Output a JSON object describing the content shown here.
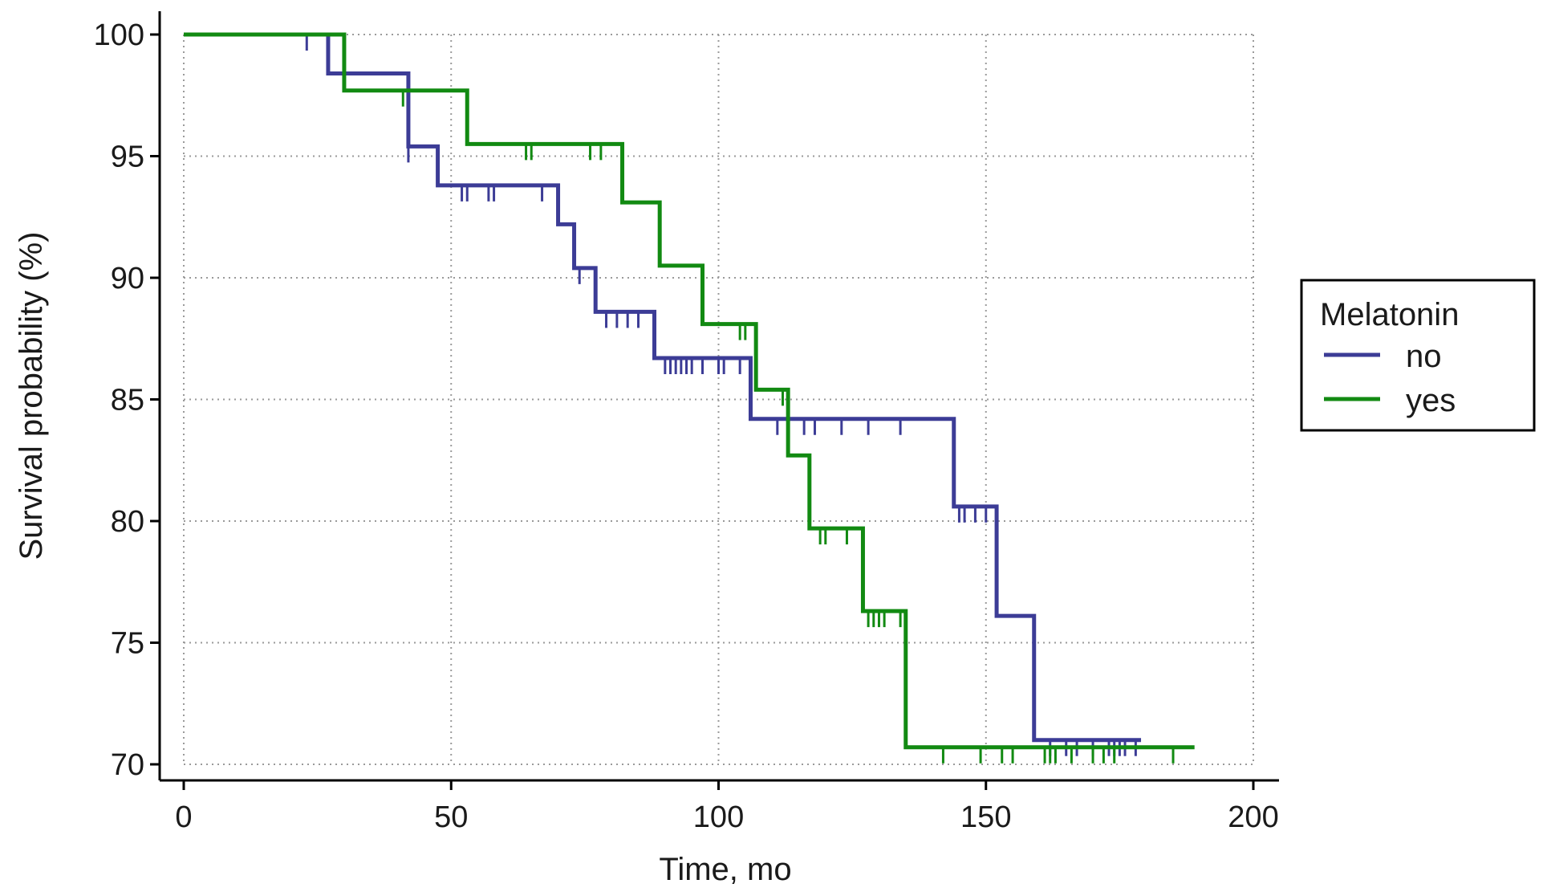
{
  "chart_data": {
    "type": "line",
    "title": "",
    "xlabel": "Time, mo",
    "ylabel": "Survival probability (%)",
    "xlim": [
      0,
      200
    ],
    "ylim": [
      70,
      100
    ],
    "x_ticks": [
      0,
      50,
      100,
      150,
      200
    ],
    "y_ticks": [
      70,
      75,
      80,
      85,
      90,
      95,
      100
    ],
    "grid": true,
    "legend": {
      "title": "Melatonin",
      "placement": "right"
    },
    "series": [
      {
        "name": "no",
        "color": "#3c3c96",
        "steps": [
          {
            "x": 0,
            "y": 100
          },
          {
            "x": 27,
            "y": 98.4
          },
          {
            "x": 42,
            "y": 95.4
          },
          {
            "x": 47.5,
            "y": 93.8
          },
          {
            "x": 70,
            "y": 92.2
          },
          {
            "x": 73,
            "y": 90.4
          },
          {
            "x": 77,
            "y": 88.6
          },
          {
            "x": 88,
            "y": 86.7
          },
          {
            "x": 106,
            "y": 84.2
          },
          {
            "x": 144,
            "y": 80.6
          },
          {
            "x": 152,
            "y": 76.1
          },
          {
            "x": 159,
            "y": 71.0
          },
          {
            "x": 179,
            "y": 71.0
          }
        ],
        "censored": [
          23,
          42,
          52,
          53,
          57,
          58,
          67,
          74,
          79,
          81,
          83,
          85,
          90,
          91,
          92,
          93,
          94,
          95,
          97,
          100,
          101,
          104,
          111,
          116,
          118,
          123,
          128,
          134,
          145,
          146,
          148,
          150,
          162,
          165,
          167,
          170,
          173,
          174,
          175,
          176,
          178
        ]
      },
      {
        "name": "yes",
        "color": "#128a12",
        "steps": [
          {
            "x": 0,
            "y": 100
          },
          {
            "x": 30,
            "y": 97.7
          },
          {
            "x": 53,
            "y": 95.5
          },
          {
            "x": 82,
            "y": 93.1
          },
          {
            "x": 89,
            "y": 90.5
          },
          {
            "x": 97,
            "y": 88.1
          },
          {
            "x": 107,
            "y": 85.4
          },
          {
            "x": 113,
            "y": 82.7
          },
          {
            "x": 117,
            "y": 79.7
          },
          {
            "x": 127,
            "y": 76.3
          },
          {
            "x": 135,
            "y": 70.7
          },
          {
            "x": 189,
            "y": 70.7
          }
        ],
        "censored": [
          41,
          64,
          65,
          76,
          78,
          104,
          105,
          112,
          119,
          120,
          124,
          128,
          129,
          130,
          131,
          134,
          142,
          149,
          153,
          155,
          161,
          162,
          163,
          166,
          170,
          172,
          174,
          185
        ]
      }
    ]
  }
}
